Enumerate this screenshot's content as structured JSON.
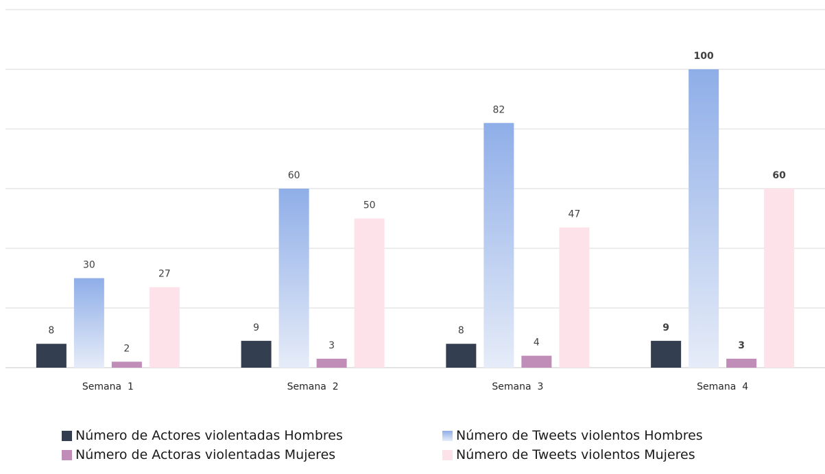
{
  "chart_data": {
    "type": "bar",
    "categories": [
      "Semana  1",
      "Semana  2",
      "Semana  3",
      "Semana  4"
    ],
    "series": [
      {
        "name": "Número de Actores violentadas Hombres",
        "values": [
          8,
          9,
          8,
          9
        ],
        "color": "#333f50",
        "style": "solid"
      },
      {
        "name": "Número de Tweets violentos Hombres",
        "values": [
          30,
          60,
          82,
          100
        ],
        "color": "#8faee8",
        "color_end": "#e6ecf8",
        "style": "gradient"
      },
      {
        "name": "Número de Actoras violentadas Mujeres",
        "values": [
          2,
          3,
          4,
          3
        ],
        "color": "#c08cb8",
        "style": "solid"
      },
      {
        "name": "Número de Tweets violentos Mujeres",
        "values": [
          27,
          50,
          47,
          60
        ],
        "color": "#fde3e9",
        "style": "solid"
      }
    ],
    "bold_labels_category": "Semana  4",
    "ylim": [
      0,
      120
    ],
    "grid": true,
    "y_axis_labels": false,
    "legend_position": "bottom",
    "title": "",
    "xlabel": "",
    "ylabel": ""
  }
}
